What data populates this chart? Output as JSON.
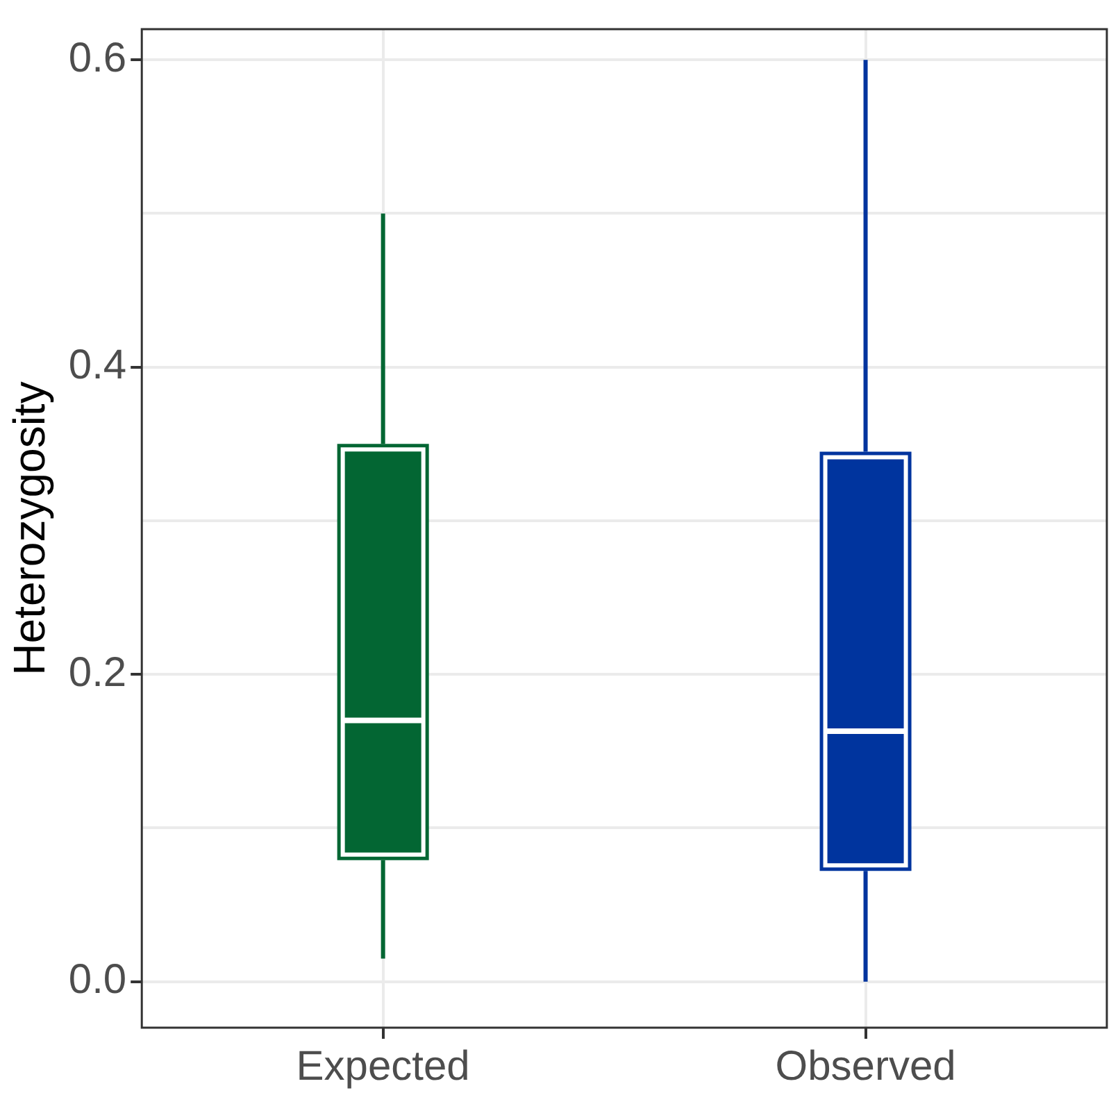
{
  "chart_data": {
    "type": "box",
    "ylabel": "Heterozygosity",
    "categories": [
      "Expected",
      "Observed"
    ],
    "colors": [
      "#036633",
      "#00349e"
    ],
    "boxes": [
      {
        "low": 0.015,
        "q1": 0.079,
        "median": 0.17,
        "q3": 0.35,
        "high": 0.5
      },
      {
        "low": 0.0,
        "q1": 0.072,
        "median": 0.163,
        "q3": 0.345,
        "high": 0.6
      }
    ],
    "ylim": [
      -0.03,
      0.62
    ],
    "yticks": [
      {
        "value": 0,
        "label": "0.0"
      },
      {
        "value": 0.1,
        "label": null
      },
      {
        "value": 0.2,
        "label": "0.2"
      },
      {
        "value": 0.3,
        "label": null
      },
      {
        "value": 0.4,
        "label": "0.4"
      },
      {
        "value": 0.5,
        "label": null
      },
      {
        "value": 0.6,
        "label": "0.6"
      }
    ],
    "grid": true
  }
}
